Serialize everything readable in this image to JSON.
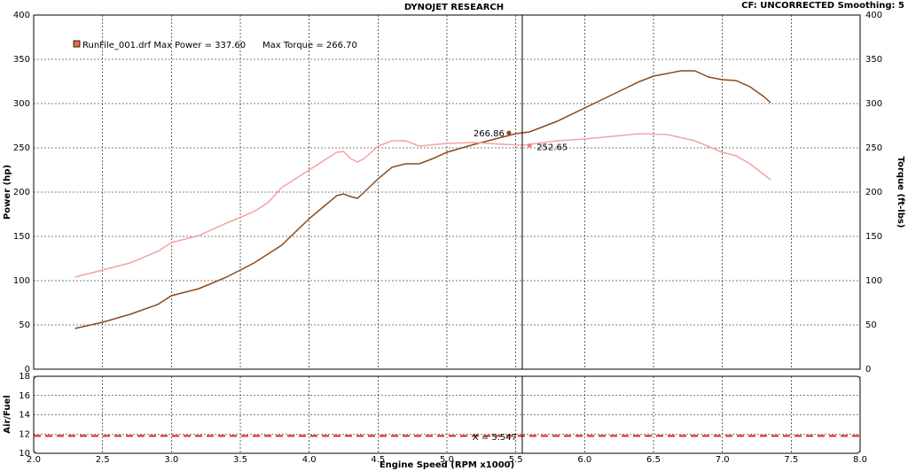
{
  "chart_data": [
    {
      "type": "line",
      "title": "DYNOJET RESEARCH",
      "subtitle": "CF: UNCORRECTED  Smoothing: 5",
      "ylabel": "Power (hp)",
      "y2label": "Torque (ft-lbs)",
      "xlim": [
        2,
        8
      ],
      "xticks": [
        2,
        2.5,
        3,
        3.5,
        4,
        4.5,
        5,
        5.5,
        6,
        6.5,
        7,
        7.5,
        8
      ],
      "ylim": [
        0,
        400
      ],
      "yticks": [
        0,
        50,
        100,
        150,
        200,
        250,
        300,
        350,
        400
      ],
      "y2lim": [
        0,
        400
      ],
      "y2ticks": [
        0,
        50,
        100,
        150,
        200,
        250,
        300,
        350,
        400
      ],
      "grid": true,
      "legend": "upper left",
      "cursor": 5.547,
      "annotations": [
        {
          "x": 5.45,
          "value": 266.86,
          "color": "#8b4a1c"
        },
        {
          "x": 5.6,
          "value": 252.65,
          "color": "#f08080"
        }
      ],
      "series": [
        {
          "name": "RunFile_001.drf Max Power = 337.60",
          "color": "#8b4a1c",
          "x": [
            2.3,
            2.5,
            2.7,
            2.9,
            3.0,
            3.2,
            3.4,
            3.6,
            3.8,
            3.9,
            4.0,
            4.1,
            4.2,
            4.25,
            4.3,
            4.35,
            4.4,
            4.5,
            4.6,
            4.7,
            4.8,
            4.9,
            5.0,
            5.2,
            5.4,
            5.5,
            5.6,
            5.8,
            6.0,
            6.2,
            6.4,
            6.5,
            6.7,
            6.8,
            6.9,
            7.0,
            7.1,
            7.2,
            7.3,
            7.35
          ],
          "values": [
            46,
            53,
            62,
            73,
            83,
            91,
            104,
            120,
            140,
            155,
            170,
            183,
            196,
            198,
            195,
            193,
            200,
            215,
            228,
            232,
            232,
            238,
            245,
            254,
            262,
            266,
            268,
            280,
            295,
            310,
            325,
            331,
            337,
            337,
            330,
            327,
            326,
            319,
            308,
            301
          ]
        },
        {
          "name": "Max Torque = 266.70",
          "color": "#f4a3a3",
          "axis": "y2",
          "x": [
            2.3,
            2.5,
            2.7,
            2.9,
            3.0,
            3.2,
            3.4,
            3.6,
            3.7,
            3.8,
            4.0,
            4.1,
            4.2,
            4.25,
            4.3,
            4.35,
            4.4,
            4.5,
            4.6,
            4.7,
            4.8,
            5.0,
            5.2,
            5.4,
            5.55,
            5.8,
            6.0,
            6.2,
            6.4,
            6.6,
            6.8,
            7.0,
            7.1,
            7.2,
            7.35
          ],
          "values": [
            104,
            112,
            120,
            133,
            143,
            151,
            165,
            178,
            188,
            205,
            225,
            235,
            245,
            246,
            238,
            234,
            238,
            252,
            258,
            258,
            252,
            255,
            256,
            254,
            253,
            258,
            260,
            263,
            266,
            265,
            258,
            245,
            241,
            232,
            214
          ]
        }
      ]
    },
    {
      "type": "line",
      "ylabel": "Air/Fuel",
      "xlabel": "Engine Speed (RPM x1000)",
      "xlim": [
        2,
        8
      ],
      "xticks": [
        {
          "value": 2,
          "label": "2.0"
        },
        2.5,
        {
          "value": 3,
          "label": "3.0"
        },
        3.5,
        {
          "value": 4,
          "label": "4.0"
        },
        4.5,
        {
          "value": 5,
          "label": "5.0"
        },
        5.5,
        {
          "value": 6,
          "label": "6.0"
        },
        6.5,
        {
          "value": 7,
          "label": "7.0"
        },
        7.5,
        {
          "value": 8,
          "label": "8.0"
        }
      ],
      "ylim": [
        10,
        18
      ],
      "yticks": [
        10,
        12,
        14,
        16,
        18
      ],
      "grid": true,
      "cursor": 5.547,
      "cursor_label": "X = 5.547",
      "series": [
        {
          "color": "#e02020",
          "dashed": true,
          "x": [
            2,
            8
          ],
          "values": [
            11.8,
            11.8
          ]
        }
      ]
    }
  ]
}
